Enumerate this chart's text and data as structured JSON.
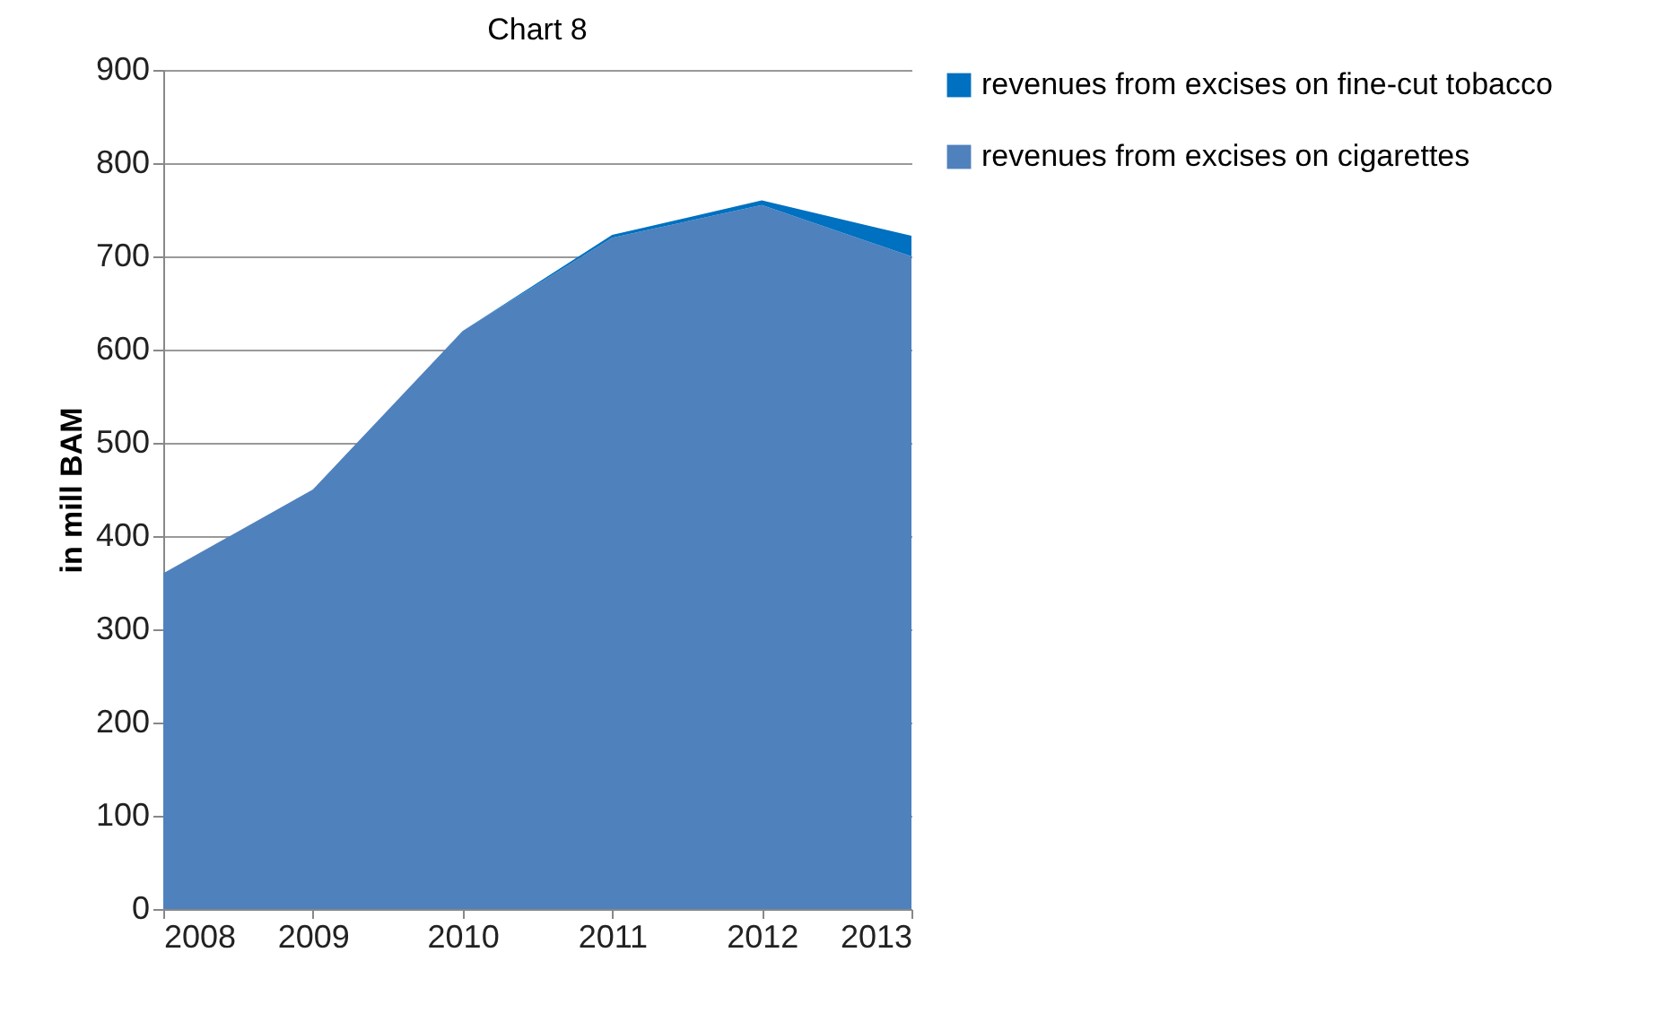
{
  "chart_data": {
    "type": "area",
    "title": "Chart 8",
    "ylabel": "in mill BAM",
    "x": [
      2008,
      2009,
      2010,
      2011,
      2012,
      2013
    ],
    "series": [
      {
        "name": "revenues from excises on cigarettes",
        "color": "#4f81bd",
        "values": [
          360,
          450,
          620,
          720,
          755,
          700
        ]
      },
      {
        "name": "revenues from excises on fine-cut tobacco",
        "color": "#0070c0",
        "values": [
          0,
          0,
          0,
          3,
          5,
          22
        ]
      }
    ],
    "stacked": true,
    "xlim": [
      2008,
      2013
    ],
    "xticks": [
      2008,
      2009,
      2010,
      2011,
      2012,
      2013
    ],
    "ylim": [
      0,
      900
    ],
    "yticks": [
      0,
      100,
      200,
      300,
      400,
      500,
      600,
      700,
      800,
      900
    ],
    "grid": "y",
    "legend": "right"
  }
}
